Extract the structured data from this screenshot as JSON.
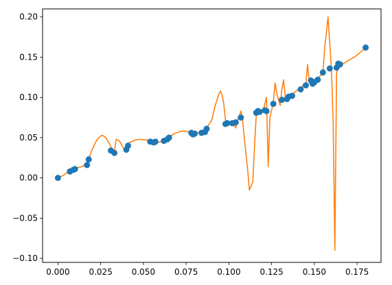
{
  "chart_data": {
    "type": "scatter",
    "title": "",
    "xlabel": "",
    "ylabel": "",
    "xlim": [
      -0.009,
      0.189
    ],
    "ylim": [
      -0.105,
      0.21
    ],
    "x_ticks": [
      0.0,
      0.025,
      0.05,
      0.075,
      0.1,
      0.125,
      0.15,
      0.175
    ],
    "x_tick_labels": [
      "0.000",
      "0.025",
      "0.050",
      "0.075",
      "0.100",
      "0.125",
      "0.150",
      "0.175"
    ],
    "y_ticks": [
      -0.1,
      -0.05,
      0.0,
      0.05,
      0.1,
      0.15,
      0.2
    ],
    "y_tick_labels": [
      "−0.10",
      "−0.05",
      "0.00",
      "0.05",
      "0.10",
      "0.15",
      "0.20"
    ],
    "grid": false,
    "legend": "none",
    "colors": {
      "scatter": "#1f77b4",
      "line": "#ff7f0e"
    },
    "series": [
      {
        "kind": "scatter",
        "points": [
          [
            0.0,
            0.0
          ],
          [
            0.007,
            0.008
          ],
          [
            0.009,
            0.01
          ],
          [
            0.01,
            0.011
          ],
          [
            0.017,
            0.016
          ],
          [
            0.018,
            0.023
          ],
          [
            0.031,
            0.034
          ],
          [
            0.033,
            0.031
          ],
          [
            0.04,
            0.035
          ],
          [
            0.041,
            0.04
          ],
          [
            0.054,
            0.045
          ],
          [
            0.056,
            0.044
          ],
          [
            0.057,
            0.045
          ],
          [
            0.062,
            0.046
          ],
          [
            0.064,
            0.048
          ],
          [
            0.065,
            0.05
          ],
          [
            0.078,
            0.056
          ],
          [
            0.079,
            0.054
          ],
          [
            0.08,
            0.055
          ],
          [
            0.084,
            0.056
          ],
          [
            0.086,
            0.057
          ],
          [
            0.087,
            0.061
          ],
          [
            0.098,
            0.067
          ],
          [
            0.099,
            0.068
          ],
          [
            0.102,
            0.068
          ],
          [
            0.104,
            0.069
          ],
          [
            0.107,
            0.075
          ],
          [
            0.116,
            0.081
          ],
          [
            0.117,
            0.083
          ],
          [
            0.118,
            0.082
          ],
          [
            0.121,
            0.084
          ],
          [
            0.122,
            0.083
          ],
          [
            0.126,
            0.092
          ],
          [
            0.131,
            0.097
          ],
          [
            0.134,
            0.098
          ],
          [
            0.135,
            0.101
          ],
          [
            0.137,
            0.102
          ],
          [
            0.142,
            0.11
          ],
          [
            0.145,
            0.115
          ],
          [
            0.148,
            0.121
          ],
          [
            0.149,
            0.117
          ],
          [
            0.15,
            0.119
          ],
          [
            0.152,
            0.122
          ],
          [
            0.155,
            0.131
          ],
          [
            0.159,
            0.136
          ],
          [
            0.163,
            0.137
          ],
          [
            0.164,
            0.142
          ],
          [
            0.165,
            0.141
          ],
          [
            0.18,
            0.162
          ]
        ]
      },
      {
        "kind": "line",
        "points": [
          [
            0.0,
            0.0
          ],
          [
            0.003,
            0.003
          ],
          [
            0.007,
            0.009
          ],
          [
            0.01,
            0.012
          ],
          [
            0.014,
            0.014
          ],
          [
            0.017,
            0.017
          ],
          [
            0.019,
            0.03
          ],
          [
            0.021,
            0.04
          ],
          [
            0.023,
            0.048
          ],
          [
            0.025,
            0.052
          ],
          [
            0.026,
            0.053
          ],
          [
            0.028,
            0.05
          ],
          [
            0.03,
            0.043
          ],
          [
            0.032,
            0.034
          ],
          [
            0.033,
            0.031
          ],
          [
            0.034,
            0.048
          ],
          [
            0.036,
            0.046
          ],
          [
            0.038,
            0.038
          ],
          [
            0.04,
            0.036
          ],
          [
            0.042,
            0.044
          ],
          [
            0.045,
            0.047
          ],
          [
            0.048,
            0.048
          ],
          [
            0.052,
            0.047
          ],
          [
            0.055,
            0.045
          ],
          [
            0.058,
            0.044
          ],
          [
            0.062,
            0.046
          ],
          [
            0.065,
            0.05
          ],
          [
            0.068,
            0.055
          ],
          [
            0.072,
            0.058
          ],
          [
            0.075,
            0.058
          ],
          [
            0.078,
            0.056
          ],
          [
            0.08,
            0.055
          ],
          [
            0.083,
            0.057
          ],
          [
            0.085,
            0.059
          ],
          [
            0.087,
            0.062
          ],
          [
            0.09,
            0.072
          ],
          [
            0.092,
            0.09
          ],
          [
            0.094,
            0.103
          ],
          [
            0.095,
            0.108
          ],
          [
            0.096,
            0.103
          ],
          [
            0.097,
            0.092
          ],
          [
            0.098,
            0.072
          ],
          [
            0.099,
            0.068
          ],
          [
            0.101,
            0.066
          ],
          [
            0.103,
            0.067
          ],
          [
            0.104,
            0.062
          ],
          [
            0.105,
            0.072
          ],
          [
            0.106,
            0.076
          ],
          [
            0.107,
            0.083
          ],
          [
            0.108,
            0.072
          ],
          [
            0.109,
            0.05
          ],
          [
            0.11,
            0.03
          ],
          [
            0.111,
            0.01
          ],
          [
            0.112,
            -0.015
          ],
          [
            0.114,
            -0.005
          ],
          [
            0.115,
            0.04
          ],
          [
            0.116,
            0.078
          ],
          [
            0.117,
            0.082
          ],
          [
            0.119,
            0.082
          ],
          [
            0.12,
            0.083
          ],
          [
            0.122,
            0.1
          ],
          [
            0.123,
            0.014
          ],
          [
            0.124,
            0.075
          ],
          [
            0.126,
            0.094
          ],
          [
            0.127,
            0.118
          ],
          [
            0.128,
            0.105
          ],
          [
            0.13,
            0.09
          ],
          [
            0.131,
            0.11
          ],
          [
            0.132,
            0.122
          ],
          [
            0.133,
            0.1
          ],
          [
            0.135,
            0.102
          ],
          [
            0.137,
            0.104
          ],
          [
            0.14,
            0.109
          ],
          [
            0.143,
            0.114
          ],
          [
            0.145,
            0.115
          ],
          [
            0.146,
            0.141
          ],
          [
            0.147,
            0.121
          ],
          [
            0.149,
            0.119
          ],
          [
            0.151,
            0.122
          ],
          [
            0.153,
            0.126
          ],
          [
            0.155,
            0.13
          ],
          [
            0.156,
            0.16
          ],
          [
            0.158,
            0.2
          ],
          [
            0.16,
            0.135
          ],
          [
            0.161,
            0.07
          ],
          [
            0.162,
            -0.09
          ],
          [
            0.163,
            0.13
          ],
          [
            0.164,
            0.141
          ],
          [
            0.166,
            0.141
          ],
          [
            0.17,
            0.146
          ],
          [
            0.174,
            0.151
          ],
          [
            0.178,
            0.158
          ],
          [
            0.18,
            0.162
          ]
        ]
      }
    ]
  }
}
